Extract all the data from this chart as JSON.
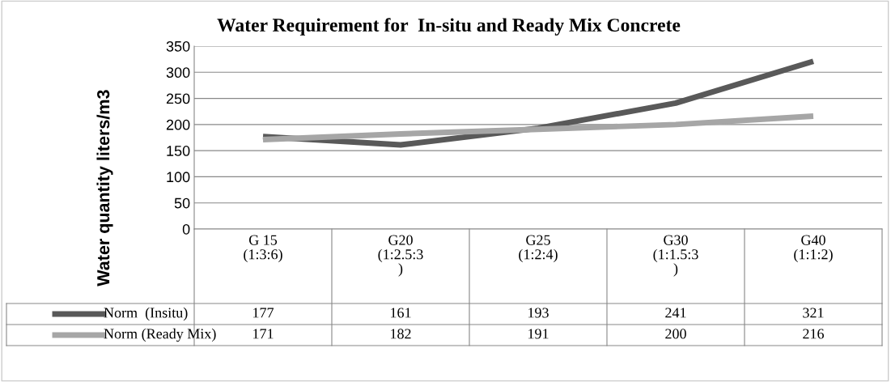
{
  "chart_data": {
    "type": "line",
    "title": "Water Requirement for  In-situ and Ready Mix Concrete",
    "ylabel": "Water quantity liters/m3",
    "categories": [
      "G 15\n(1:3:6)",
      "G20\n(1:2.5:3\n)",
      "G25\n(1:2:4)",
      "G30\n(1:1.5:3\n)",
      "G40\n(1:1:2)"
    ],
    "series": [
      {
        "name": "Norm  (Insitu)",
        "color": "#595959",
        "values": [
          177,
          161,
          193,
          241,
          321
        ]
      },
      {
        "name": "Norm (Ready Mix)",
        "color": "#a6a6a6",
        "values": [
          171,
          182,
          191,
          200,
          216
        ]
      }
    ],
    "ylim": [
      0,
      350
    ],
    "yticks": [
      0,
      50,
      100,
      150,
      200,
      250,
      300,
      350
    ],
    "grid": "y",
    "legend": "bottom left",
    "data_labels": true,
    "marker": "none",
    "line_style": "solid"
  }
}
